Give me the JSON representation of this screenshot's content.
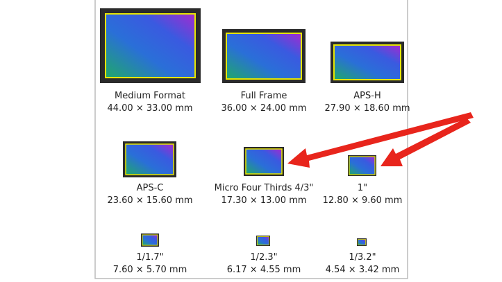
{
  "sensors": [
    {
      "name": "Medium Format",
      "size": "44.00 × 33.00 mm"
    },
    {
      "name": "Full Frame",
      "size": "36.00 × 24.00 mm"
    },
    {
      "name": "APS-H",
      "size": "27.90 × 18.60 mm"
    },
    {
      "name": "APS-C",
      "size": "23.60 × 15.60 mm"
    },
    {
      "name": "Micro Four Thirds 4/3\"",
      "size": "17.30 × 13.00 mm"
    },
    {
      "name": "1\"",
      "size": "12.80 × 9.60 mm"
    },
    {
      "name": "1/1.7\"",
      "size": "7.60 × 5.70 mm"
    },
    {
      "name": "1/2.3\"",
      "size": "6.17 × 4.55 mm"
    },
    {
      "name": "1/3.2\"",
      "size": "4.54 × 3.42 mm"
    }
  ]
}
